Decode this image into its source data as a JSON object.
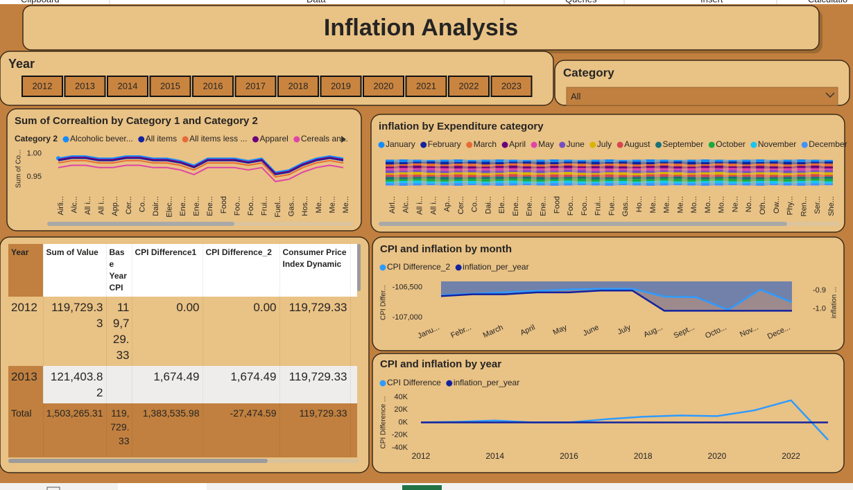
{
  "ribbon_groups": [
    "Clipboard",
    "Data",
    "Queries",
    "Insert",
    "Calculatio"
  ],
  "header": {
    "title": "Inflation Analysis"
  },
  "year_slicer": {
    "title": "Year",
    "options": [
      2012,
      2013,
      2014,
      2015,
      2016,
      2017,
      2018,
      2019,
      2020,
      2021,
      2022,
      2023
    ]
  },
  "category_slicer": {
    "title": "Category",
    "selected": "All"
  },
  "chart_data": [
    {
      "type": "line",
      "title": "Sum of Correaltion by Category 1 and Category 2",
      "legend_title": "Category 2",
      "y_label": "Sum of Co...",
      "categories": [
        "Airli...",
        "Alc...",
        "All i...",
        "All i...",
        "App...",
        "Cer...",
        "Co...",
        "Dair...",
        "Elec...",
        "Ene...",
        "Ene...",
        "Ene...",
        "Food",
        "Foo...",
        "Foo...",
        "Frui...",
        "Fuel...",
        "Gas...",
        "Hos...",
        "Me...",
        "Me...",
        "Me..."
      ],
      "series": [
        {
          "name": "Alcoholic bever...",
          "color": "#118DFF",
          "values": [
            0.99,
            0.995,
            0.995,
            0.99,
            0.99,
            0.995,
            0.995,
            0.99,
            0.99,
            0.985,
            0.975,
            0.99,
            0.99,
            0.99,
            0.985,
            0.99,
            0.96,
            0.965,
            0.98,
            0.99,
            0.995,
            0.99
          ]
        },
        {
          "name": "All items",
          "color": "#12239E",
          "values": [
            0.985,
            0.99,
            0.99,
            0.985,
            0.985,
            0.99,
            0.99,
            0.985,
            0.985,
            0.98,
            0.97,
            0.985,
            0.985,
            0.985,
            0.98,
            0.985,
            0.955,
            0.96,
            0.975,
            0.985,
            0.99,
            0.985
          ]
        },
        {
          "name": "All items less ...",
          "color": "#E66C37",
          "values": [
            0.98,
            0.985,
            0.985,
            0.98,
            0.98,
            0.985,
            0.985,
            0.98,
            0.98,
            0.975,
            0.965,
            0.98,
            0.98,
            0.98,
            0.975,
            0.98,
            0.95,
            0.955,
            0.97,
            0.98,
            0.985,
            0.98
          ]
        },
        {
          "name": "Apparel",
          "color": "#6B007B",
          "values": [
            0.987,
            0.992,
            0.992,
            0.987,
            0.987,
            0.992,
            0.992,
            0.987,
            0.987,
            0.982,
            0.972,
            0.987,
            0.987,
            0.987,
            0.982,
            0.987,
            0.957,
            0.962,
            0.977,
            0.987,
            0.992,
            0.987
          ]
        },
        {
          "name": "Cereals an...",
          "color": "#E044A7",
          "values": [
            0.97,
            0.975,
            0.975,
            0.97,
            0.97,
            0.975,
            0.975,
            0.97,
            0.97,
            0.965,
            0.955,
            0.97,
            0.97,
            0.97,
            0.965,
            0.97,
            0.94,
            0.945,
            0.96,
            0.97,
            0.975,
            0.97
          ]
        }
      ],
      "ylim": [
        0.925,
        1.01
      ],
      "yticks": [
        {
          "value": 1,
          "label": "1.00"
        },
        0.95
      ]
    },
    {
      "type": "ribbon",
      "title": "inflation by Expenditure category",
      "categories": [
        "Airl...",
        "Alc...",
        "All i...",
        "All i...",
        "Ap...",
        "Cer...",
        "Co...",
        "Dai...",
        "Ele...",
        "Ene...",
        "Ene...",
        "Ene...",
        "Food",
        "Foo...",
        "Foo...",
        "Frui...",
        "Fue...",
        "Gas...",
        "Ho...",
        "Me...",
        "Me...",
        "Me...",
        "Mo...",
        "Mo...",
        "Mo...",
        "Ne...",
        "No...",
        "Oth...",
        "Ow...",
        "Phy...",
        "Ren...",
        "Ser...",
        "She..."
      ],
      "series": [
        {
          "name": "January",
          "color": "#118DFF",
          "values": [
            4,
            5,
            4,
            3,
            4,
            5,
            3,
            4,
            5,
            4,
            3,
            4,
            5,
            4,
            3,
            4,
            5,
            3,
            4,
            5,
            4,
            3,
            4,
            5,
            4,
            3,
            4,
            5,
            3,
            4,
            5,
            4,
            3
          ]
        },
        {
          "name": "February",
          "color": "#12239E",
          "values": [
            5,
            4,
            3,
            4,
            5,
            3,
            4,
            5,
            4,
            3,
            4,
            5,
            4,
            3,
            4,
            5,
            3,
            4,
            5,
            4,
            3,
            4,
            5,
            4,
            3,
            4,
            5,
            3,
            4,
            5,
            4,
            3,
            4
          ]
        },
        {
          "name": "March",
          "color": "#E66C37",
          "values": [
            4,
            3,
            4,
            5,
            3,
            4,
            5,
            4,
            3,
            4,
            5,
            4,
            3,
            4,
            5,
            3,
            4,
            5,
            4,
            3,
            4,
            5,
            4,
            3,
            4,
            5,
            3,
            4,
            5,
            4,
            3,
            4,
            5
          ]
        },
        {
          "name": "April",
          "color": "#6B007B",
          "values": [
            3,
            4,
            5,
            3,
            4,
            5,
            4,
            3,
            4,
            5,
            4,
            3,
            4,
            5,
            3,
            4,
            5,
            4,
            3,
            4,
            5,
            4,
            3,
            4,
            5,
            3,
            4,
            5,
            4,
            3,
            4,
            5,
            4
          ]
        },
        {
          "name": "May",
          "color": "#E044A7",
          "values": [
            4,
            5,
            3,
            4,
            5,
            4,
            3,
            4,
            5,
            4,
            3,
            4,
            5,
            3,
            4,
            5,
            4,
            3,
            4,
            5,
            4,
            3,
            4,
            5,
            3,
            4,
            5,
            4,
            3,
            4,
            5,
            4,
            3
          ]
        },
        {
          "name": "June",
          "color": "#744EC2",
          "values": [
            5,
            3,
            4,
            5,
            4,
            3,
            4,
            5,
            4,
            3,
            4,
            5,
            3,
            4,
            5,
            4,
            3,
            4,
            5,
            4,
            3,
            4,
            5,
            3,
            4,
            5,
            4,
            3,
            4,
            5,
            4,
            3,
            4
          ]
        },
        {
          "name": "July",
          "color": "#D9B300",
          "values": [
            3,
            4,
            5,
            4,
            3,
            4,
            5,
            4,
            3,
            4,
            5,
            3,
            4,
            5,
            4,
            3,
            4,
            5,
            4,
            3,
            4,
            5,
            3,
            4,
            5,
            4,
            3,
            4,
            5,
            4,
            3,
            4,
            5
          ]
        },
        {
          "name": "August",
          "color": "#D64550",
          "values": [
            4,
            5,
            4,
            3,
            4,
            5,
            4,
            3,
            4,
            5,
            3,
            4,
            5,
            4,
            3,
            4,
            5,
            4,
            3,
            4,
            5,
            3,
            4,
            5,
            4,
            3,
            4,
            5,
            4,
            3,
            4,
            5,
            3
          ]
        },
        {
          "name": "September",
          "color": "#197278",
          "values": [
            5,
            4,
            3,
            4,
            5,
            4,
            3,
            4,
            5,
            3,
            4,
            5,
            4,
            3,
            4,
            5,
            4,
            3,
            4,
            5,
            3,
            4,
            5,
            4,
            3,
            4,
            5,
            4,
            3,
            4,
            5,
            3,
            4
          ]
        },
        {
          "name": "October",
          "color": "#1AAB40",
          "values": [
            4,
            3,
            4,
            5,
            4,
            3,
            4,
            5,
            3,
            4,
            5,
            4,
            3,
            4,
            5,
            4,
            3,
            4,
            5,
            3,
            4,
            5,
            4,
            3,
            4,
            5,
            4,
            3,
            4,
            5,
            3,
            4,
            5
          ]
        },
        {
          "name": "November",
          "color": "#15C6F4",
          "values": [
            3,
            4,
            5,
            4,
            3,
            4,
            5,
            3,
            4,
            5,
            4,
            3,
            4,
            5,
            4,
            3,
            4,
            5,
            3,
            4,
            5,
            4,
            3,
            4,
            5,
            4,
            3,
            4,
            5,
            3,
            4,
            5,
            4
          ]
        },
        {
          "name": "December",
          "color": "#4092FF",
          "values": [
            4,
            5,
            4,
            3,
            4,
            5,
            3,
            4,
            5,
            4,
            3,
            4,
            5,
            4,
            3,
            4,
            5,
            3,
            4,
            5,
            4,
            3,
            4,
            5,
            4,
            3,
            4,
            5,
            3,
            4,
            5,
            4,
            3
          ]
        }
      ]
    },
    {
      "type": "area",
      "title": "CPI and inflation by month",
      "y_label": "CPI Differ...",
      "y2_label": "inflation ...",
      "categories": [
        "Janu...",
        "Febr...",
        "March",
        "April",
        "May",
        "June",
        "July",
        "Aug...",
        "Sept...",
        "Octo...",
        "Nov...",
        "Dece..."
      ],
      "series": [
        {
          "name": "CPI Difference_2",
          "color": "#2E9BFF",
          "values": [
            -106628,
            -106605,
            -106581,
            -106558,
            -106535,
            -106523,
            -106523,
            -106651,
            -106663,
            -106872,
            -106535,
            -106744
          ]
        },
        {
          "name": "inflation_per_year",
          "color": "#12239E",
          "axis": "y2",
          "values": [
            -0.93,
            -0.92,
            -0.92,
            -0.91,
            -0.91,
            -0.9,
            -0.9,
            -1.01,
            -1.01,
            -1.01,
            -1.01,
            -1.01
          ]
        }
      ],
      "ylim": [
        -107100,
        -106400
      ],
      "yticks": [
        {
          "value": -106500,
          "label": "-106,500"
        },
        {
          "value": -107000,
          "label": "-107,000"
        }
      ],
      "y2lim": [
        -1.08,
        -0.85
      ],
      "y2ticks": [
        {
          "value": -0.9,
          "label": "-0.9"
        },
        {
          "value": -1,
          "label": "-1.0"
        }
      ]
    },
    {
      "type": "line",
      "title": "CPI and inflation by year",
      "y_label": "CPI Difference ...",
      "x": [
        2012,
        2013,
        2014,
        2015,
        2016,
        2017,
        2018,
        2019,
        2020,
        2021,
        2022,
        2023
      ],
      "series": [
        {
          "name": "CPI Difference",
          "color": "#2E9BFF",
          "values": [
            0,
            1000,
            3000,
            0,
            0,
            5000,
            9000,
            11000,
            10000,
            19000,
            35000,
            -27500
          ]
        },
        {
          "name": "inflation_per_year",
          "color": "#12239E",
          "values": [
            0,
            0,
            0,
            0,
            0,
            0,
            0,
            0,
            0,
            0,
            0,
            0
          ]
        }
      ],
      "xlim": [
        2012,
        2023
      ],
      "xticks": [
        2012,
        2014,
        2016,
        2018,
        2020,
        2022
      ],
      "ylim": [
        -40000,
        40000
      ],
      "yticks": [
        {
          "value": 40000,
          "label": "40K"
        },
        {
          "value": 20000,
          "label": "20K"
        },
        {
          "value": 0,
          "label": "0K"
        },
        {
          "value": -20000,
          "label": "-20K"
        },
        {
          "value": -40000,
          "label": "-40K"
        }
      ]
    }
  ],
  "table": {
    "columns": [
      "Year",
      "Sum of Value",
      "Base Year CPI",
      "CPI Difference1",
      "CPI Difference_2",
      "Consumer Price Index Dynamic"
    ],
    "rows": [
      [
        "2012",
        "119,729.33",
        "119,729.33",
        "0.00",
        "0.00",
        "119,729.33"
      ],
      [
        "2013",
        "121,403.82",
        null,
        "1,674.49",
        "1,674.49",
        "119,729.33"
      ],
      [
        "Total",
        "1,503,265.31",
        "119,729.33",
        "1,383,535.98",
        "-27,474.59",
        "119,729.33"
      ]
    ]
  }
}
